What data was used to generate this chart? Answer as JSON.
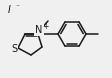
{
  "bg_color": "#f0f0f0",
  "line_color": "#1a1a1a",
  "text_color": "#1a1a1a",
  "line_width": 1.1,
  "font_size": 6.5,
  "iodide_label": "I",
  "iodide_charge": "⁻",
  "N_label": "N",
  "N_charge": "+",
  "S_label": "S"
}
